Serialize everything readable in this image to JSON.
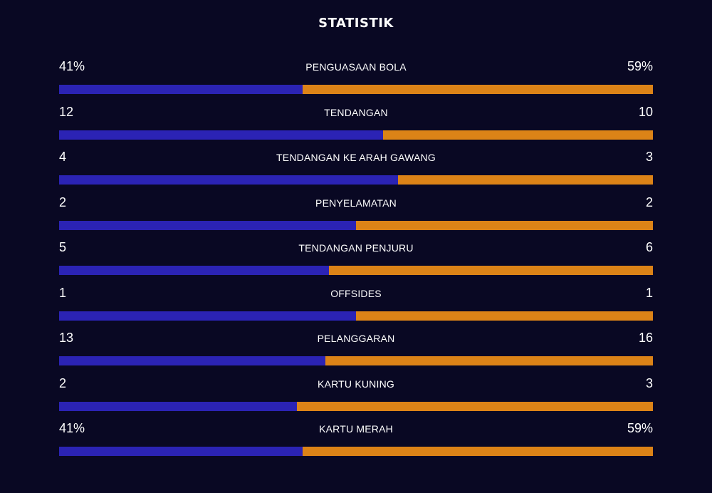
{
  "header": {
    "title": "STATISTIK"
  },
  "colors": {
    "background": "#090823",
    "home": "#2b23b4",
    "away": "#dc8317"
  },
  "stats": [
    {
      "label": "PENGUASAAN BOLA",
      "home": "41%",
      "away": "59%",
      "home_share": 0.41
    },
    {
      "label": "TENDANGAN",
      "home": "12",
      "away": "10",
      "home_share": 0.545
    },
    {
      "label": "TENDANGAN KE ARAH GAWANG",
      "home": "4",
      "away": "3",
      "home_share": 0.571
    },
    {
      "label": "PENYELAMATAN",
      "home": "2",
      "away": "2",
      "home_share": 0.5
    },
    {
      "label": "TENDANGAN PENJURU",
      "home": "5",
      "away": "6",
      "home_share": 0.455
    },
    {
      "label": "OFFSIDES",
      "home": "1",
      "away": "1",
      "home_share": 0.5
    },
    {
      "label": "PELANGGARAN",
      "home": "13",
      "away": "16",
      "home_share": 0.448
    },
    {
      "label": "KARTU KUNING",
      "home": "2",
      "away": "3",
      "home_share": 0.4
    },
    {
      "label": "KARTU MERAH",
      "home": "41%",
      "away": "59%",
      "home_share": 0.41
    }
  ]
}
